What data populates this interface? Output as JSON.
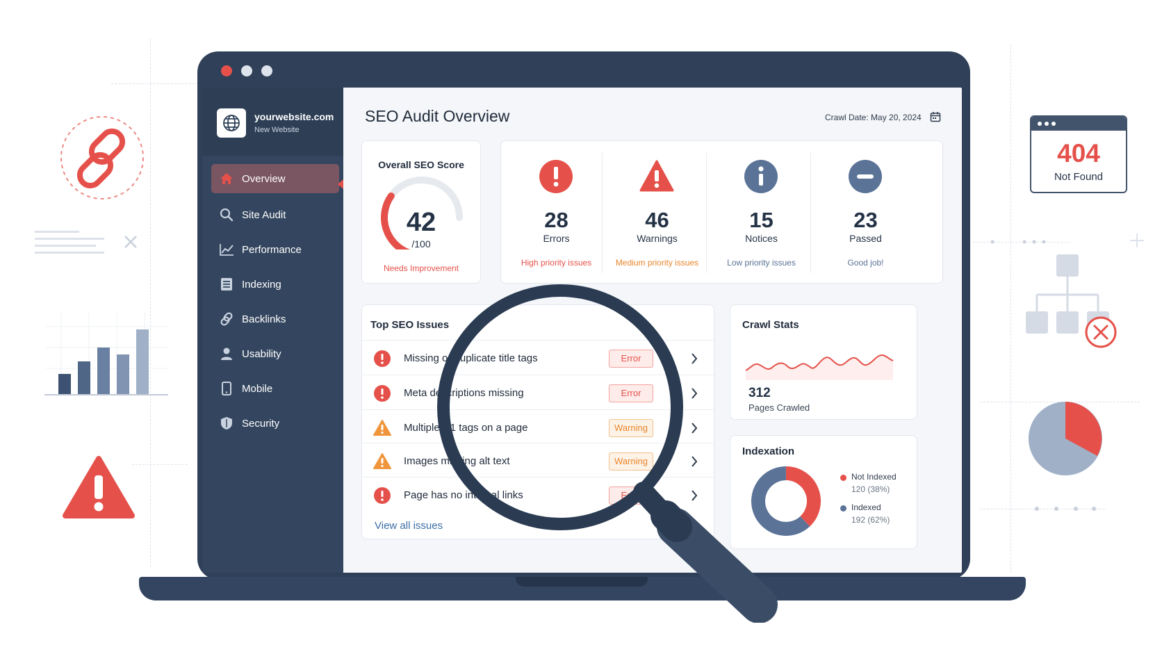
{
  "window": {
    "dot_colors": [
      "#e5514a",
      "#dfe4ec",
      "#dfe4ec"
    ]
  },
  "site": {
    "name": "yourwebsite.com",
    "subtitle": "New Website"
  },
  "nav": [
    {
      "label": "Overview",
      "icon": "home-icon",
      "active": true
    },
    {
      "label": "Site Audit",
      "icon": "search-icon"
    },
    {
      "label": "Performance",
      "icon": "trend-chart-icon"
    },
    {
      "label": "Indexing",
      "icon": "document-list-icon"
    },
    {
      "label": "Backlinks",
      "icon": "link-icon"
    },
    {
      "label": "Usability",
      "icon": "user-icon"
    },
    {
      "label": "Mobile",
      "icon": "mobile-icon"
    },
    {
      "label": "Security",
      "icon": "shield-icon"
    }
  ],
  "header": {
    "title": "SEO Audit Overview",
    "crawl_date": "Crawl Date: May 20, 2024",
    "calendar_icon": "calendar-icon"
  },
  "score": {
    "title": "Overall SEO Score",
    "value": "42",
    "max": "/100",
    "status": "Needs Improvement",
    "fraction": 0.42
  },
  "stats": [
    {
      "value": "28",
      "label": "Errors",
      "note": "High priority issues",
      "icon": "error-icon",
      "color": "#e5514a"
    },
    {
      "value": "46",
      "label": "Warnings",
      "note": "Medium priority issues",
      "icon": "warning-icon",
      "color": "#e8852b"
    },
    {
      "value": "15",
      "label": "Notices",
      "note": "Low priority issues",
      "icon": "info-icon",
      "color": "#5a7397"
    },
    {
      "value": "23",
      "label": "Passed",
      "note": "Good job!",
      "icon": "minus-circle-icon",
      "color": "#5a7397"
    }
  ],
  "issues": {
    "title": "Top SEO Issues",
    "items": [
      {
        "text": "Missing or duplicate title tags",
        "severity": "Error",
        "icon": "error-icon"
      },
      {
        "text": "Meta descriptions missing",
        "severity": "Error",
        "icon": "error-icon"
      },
      {
        "text": "Multiple H1 tags on a page",
        "severity": "Warning",
        "icon": "warning-icon"
      },
      {
        "text": "Images missing alt text",
        "severity": "Warning",
        "icon": "warning-icon"
      },
      {
        "text": "Page has no internal links",
        "severity": "Error",
        "icon": "error-icon"
      }
    ],
    "view_all": "View all issues"
  },
  "crawl": {
    "title": "Crawl Stats",
    "value": "312",
    "label": "Pages Crawled"
  },
  "indexation": {
    "title": "Indexation",
    "legend": [
      {
        "name": "Not Indexed",
        "value": "120 (38%)",
        "color": "#e5514a",
        "fraction": 0.38
      },
      {
        "name": "Indexed",
        "value": "192 (62%)",
        "color": "#5a7397",
        "fraction": 0.62
      }
    ]
  },
  "not_found": {
    "code": "404",
    "message": "Not Found"
  }
}
